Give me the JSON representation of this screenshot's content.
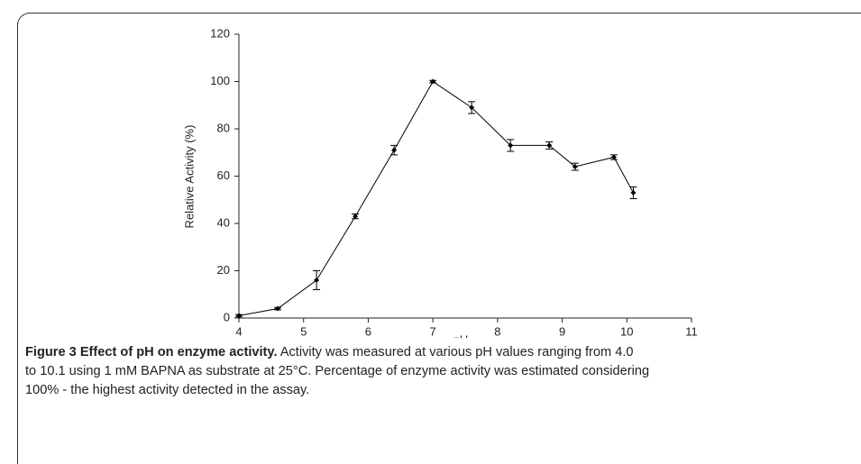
{
  "chart_data": {
    "type": "line",
    "xlabel": "pH",
    "ylabel": "Relative Activity (%)",
    "x": [
      4.0,
      4.6,
      5.2,
      5.8,
      6.4,
      7.0,
      7.6,
      8.2,
      8.8,
      9.2,
      9.8,
      10.1
    ],
    "series": [
      {
        "color": "#000000",
        "values": [
          1,
          4,
          16,
          43,
          71,
          100,
          89,
          73,
          73,
          64,
          68,
          53
        ],
        "errors": [
          0.5,
          0.5,
          4,
          1,
          2,
          0.5,
          2.5,
          2.5,
          1.5,
          1.5,
          1,
          2.5
        ]
      }
    ],
    "xlim": [
      4,
      11
    ],
    "xticks": [
      4,
      5,
      6,
      7,
      8,
      9,
      10,
      11
    ],
    "ylim": [
      0,
      120
    ],
    "yticks": [
      0,
      20,
      40,
      60,
      80,
      100,
      120
    ]
  },
  "caption": {
    "label": "Figure 3 Effect of pH on enzyme activity.",
    "lines": [
      "Activity was measured at various pH values ranging from 4.0",
      "to 10.1 using 1 mM BAPNA as substrate at 25°C. Percentage of enzyme activity was estimated considering",
      "100% - the highest activity detected in the assay."
    ]
  }
}
